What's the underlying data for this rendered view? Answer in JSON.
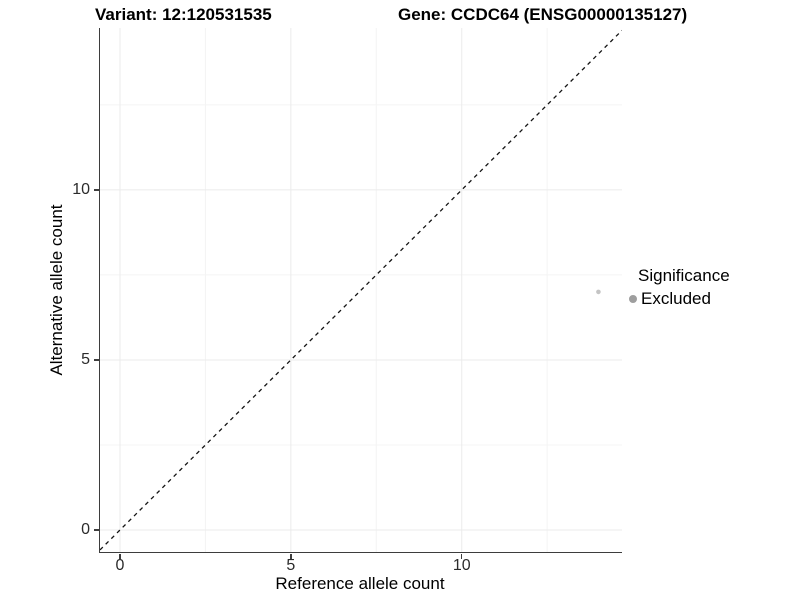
{
  "chart_data": {
    "type": "scatter",
    "title_left": "Variant: 12:120531535",
    "title_right": "Gene: CCDC64 (ENSG00000135127)",
    "xlabel": "Reference allele count",
    "ylabel": "Alternative allele count",
    "xlim": [
      -0.585,
      14.69
    ],
    "ylim": [
      -0.647,
      14.76
    ],
    "x_major_ticks": [
      0,
      5,
      10
    ],
    "y_major_ticks": [
      0,
      5,
      10
    ],
    "x_minor_gridlines": [
      2.5,
      7.5,
      12.5
    ],
    "y_minor_gridlines": [
      2.5,
      7.5,
      12.5
    ],
    "grid": true,
    "reference_line": {
      "type": "identity",
      "slope": 1,
      "intercept": 0,
      "style": "dashed"
    },
    "points": [
      {
        "x": 14,
        "y": 7,
        "significance": "Excluded"
      }
    ],
    "legend": {
      "position": "right",
      "title": "Significance",
      "entries": [
        {
          "label": "Excluded",
          "color": "#9e9e9e"
        }
      ]
    }
  },
  "colors": {
    "background": "#ffffff",
    "point": "#c4c4c4",
    "legend_key": "#9e9e9e",
    "grid_major": "#ebebeb",
    "grid_minor": "#f4f4f4",
    "axis_line": "#3d3d3d",
    "dashed_line": "#141414",
    "tick_text": "#2b2b2b",
    "title_text": "#000000"
  }
}
